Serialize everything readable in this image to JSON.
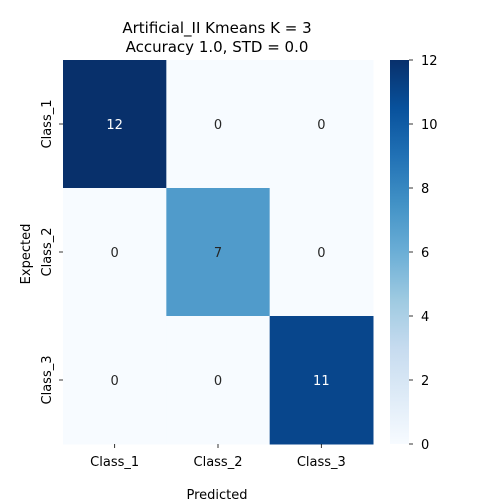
{
  "chart_data": {
    "type": "heatmap",
    "title_line1": "Artificial_II Kmeans K = 3",
    "title_line2": "Accuracy 1.0, STD = 0.0",
    "xlabel": "Predicted",
    "ylabel": "Expected",
    "x_categories": [
      "Class_1",
      "Class_2",
      "Class_3"
    ],
    "y_categories": [
      "Class_1",
      "Class_2",
      "Class_3"
    ],
    "values": [
      [
        12,
        0,
        0
      ],
      [
        0,
        7,
        0
      ],
      [
        0,
        0,
        11
      ]
    ],
    "colorbar": {
      "min": 0,
      "max": 12,
      "ticks": [
        0,
        2,
        4,
        6,
        8,
        10,
        12
      ]
    },
    "colormap": "Blues",
    "colormap_stops": [
      "#f7fbff",
      "#deebf7",
      "#c6dbef",
      "#9ecae1",
      "#6baed6",
      "#4292c6",
      "#2171b5",
      "#08519c",
      "#08306b"
    ],
    "annotation_light_color": "#ffffff",
    "annotation_dark_color": "#262626"
  }
}
